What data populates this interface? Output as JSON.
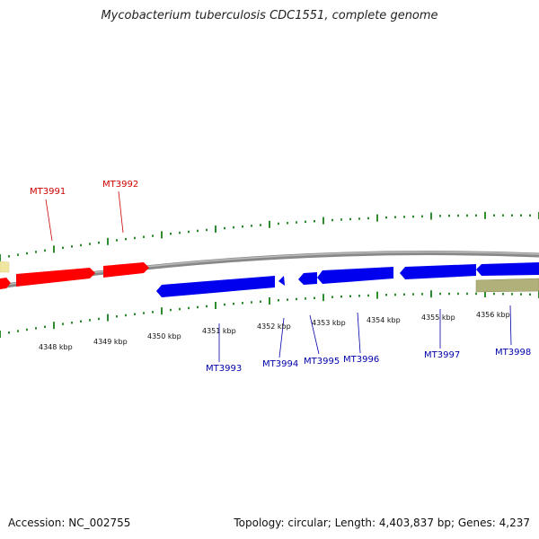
{
  "title": "Mycobacterium tuberculosis CDC1551, complete genome",
  "accession": "Accession: NC_002755",
  "topology": "Topology: circular; Length: 4,403,837 bp; Genes: 4,237",
  "colors": {
    "forward_gene": "#ff0000",
    "reverse_gene": "#0000ee",
    "other_feature": "#b0b07a",
    "backbone": "#888888",
    "tick": "#2e8b2e"
  },
  "scale_labels": [
    "4348 kbp",
    "4349 kbp",
    "4350 kbp",
    "4351 kbp",
    "4352 kbp",
    "4353 kbp",
    "4354 kbp",
    "4355 kbp",
    "4356 kbp"
  ],
  "genes": [
    {
      "label": "MT3991",
      "strand": "forward"
    },
    {
      "label": "MT3992",
      "strand": "forward"
    },
    {
      "label": "MT3993",
      "strand": "reverse"
    },
    {
      "label": "MT3994",
      "strand": "reverse"
    },
    {
      "label": "MT3995",
      "strand": "reverse"
    },
    {
      "label": "MT3996",
      "strand": "reverse"
    },
    {
      "label": "MT3997",
      "strand": "reverse"
    },
    {
      "label": "MT3998",
      "strand": "reverse"
    }
  ]
}
